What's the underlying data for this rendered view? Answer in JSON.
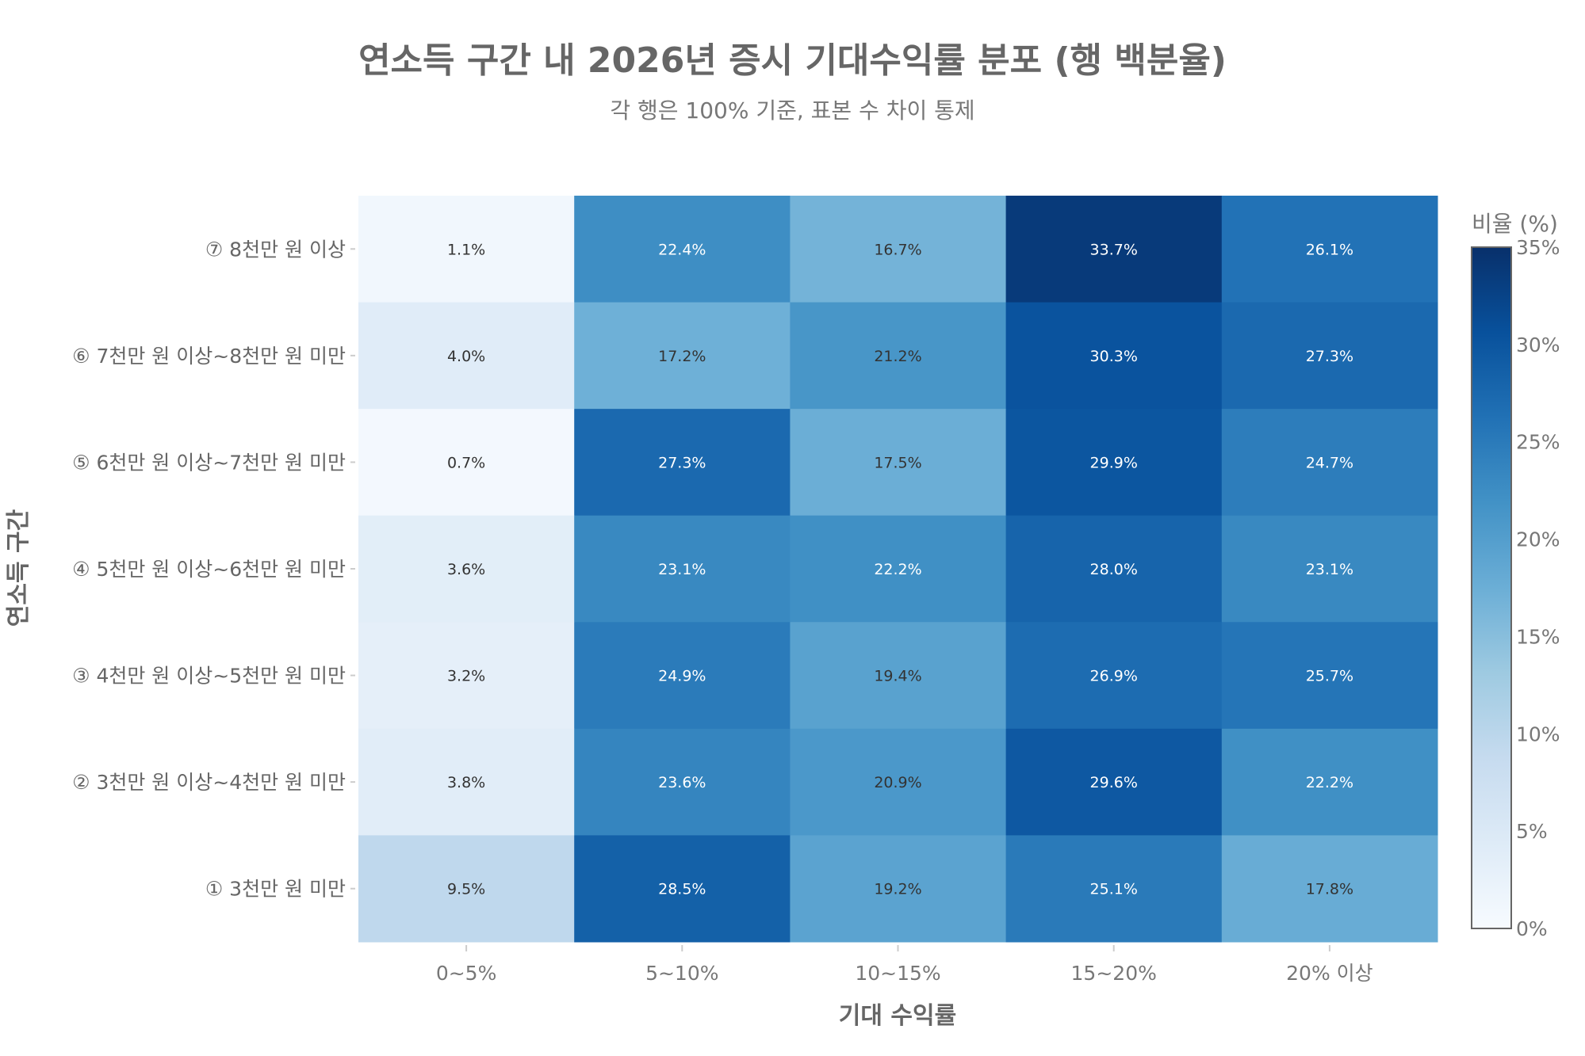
{
  "chart_data": {
    "type": "heatmap",
    "title": "연소득 구간 내 2026년 증시 기대수익률 분포 (행 백분율)",
    "subtitle": "각 행은 100% 기준, 표본 수 차이 통제",
    "xlabel": "기대 수익률",
    "ylabel": "연소득 구간",
    "x_categories": [
      "0~5%",
      "5~10%",
      "10~15%",
      "15~20%",
      "20% 이상"
    ],
    "y_categories": [
      "⑦ 8천만 원 이상",
      "⑥ 7천만 원 이상~8천만 원 미만",
      "⑤ 6천만 원 이상~7천만 원 미만",
      "④ 5천만 원 이상~6천만 원 미만",
      "③ 4천만 원 이상~5천만 원 미만",
      "② 3천만 원 이상~4천만 원 미만",
      "① 3천만 원 미만"
    ],
    "values": [
      [
        1.1,
        22.4,
        16.7,
        33.7,
        26.1
      ],
      [
        4.0,
        17.2,
        21.2,
        30.3,
        27.3
      ],
      [
        0.7,
        27.3,
        17.5,
        29.9,
        24.7
      ],
      [
        3.6,
        23.1,
        22.2,
        28.0,
        23.1
      ],
      [
        3.2,
        24.9,
        19.4,
        26.9,
        25.7
      ],
      [
        3.8,
        23.6,
        20.9,
        29.6,
        22.2
      ],
      [
        9.5,
        28.5,
        19.2,
        25.1,
        17.8
      ]
    ],
    "value_suffix": "%",
    "colorbar": {
      "title": "비율 (%)",
      "range": [
        0,
        35
      ],
      "ticks": [
        "0%",
        "5%",
        "10%",
        "15%",
        "20%",
        "25%",
        "30%",
        "35%"
      ],
      "colormap": "Blues"
    }
  }
}
